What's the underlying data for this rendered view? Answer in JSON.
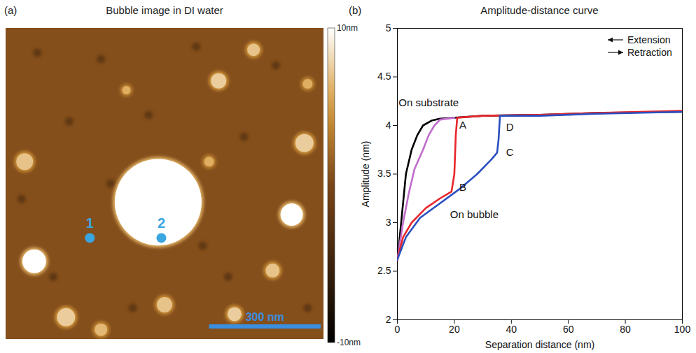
{
  "chart_data": [
    {
      "type": "image",
      "panel_label": "(a)",
      "title": "Bubble image in DI water",
      "colorbar": {
        "range": [
          -10,
          10
        ],
        "ticks": [
          {
            "value": 10,
            "label": "10nm"
          },
          {
            "value": -10,
            "label": "-10nm"
          }
        ]
      },
      "markers": [
        {
          "label": "1",
          "color": "#3aa6e0"
        },
        {
          "label": "2",
          "color": "#3aa6e0"
        }
      ],
      "scale_bar": {
        "label": "300 nm",
        "color": "#3a8fe0"
      }
    },
    {
      "type": "line",
      "panel_label": "(b)",
      "title": "Amplitude-distance curve",
      "x_label": "Separation distance (nm)",
      "y_label": "Amplitude (nm)",
      "xlim": [
        0,
        100
      ],
      "xticks": [
        0,
        20,
        40,
        60,
        80,
        100
      ],
      "ylim": [
        2,
        5
      ],
      "yticks": [
        2,
        2.5,
        3,
        3.5,
        4,
        4.5,
        5
      ],
      "legend": "top-right",
      "legend_entries": [
        "Extension",
        "Retraction"
      ],
      "series": [
        {
          "color": "#000000",
          "x": [
            0,
            1,
            2,
            3,
            5,
            7,
            9,
            12,
            15,
            30,
            50,
            70,
            100
          ],
          "values": [
            2.62,
            2.9,
            3.2,
            3.5,
            3.75,
            3.9,
            4.0,
            4.05,
            4.07,
            4.1,
            4.11,
            4.13,
            4.14
          ]
        },
        {
          "color": "#c06ccc",
          "x": [
            0,
            2,
            4,
            6,
            9,
            11,
            13,
            15,
            20
          ],
          "values": [
            2.62,
            3.0,
            3.3,
            3.55,
            3.75,
            3.9,
            4.0,
            4.06,
            4.08
          ]
        },
        {
          "color": "#e8262b",
          "x": [
            0,
            2,
            5,
            10,
            15,
            19,
            20,
            20.5,
            21,
            30,
            50,
            70,
            100
          ],
          "values": [
            2.62,
            2.85,
            3.0,
            3.15,
            3.25,
            3.32,
            3.5,
            3.9,
            4.08,
            4.1,
            4.11,
            4.13,
            4.15
          ]
        },
        {
          "color": "#2a4fbf",
          "x": [
            0,
            3,
            8,
            15,
            22,
            28,
            33,
            35,
            35.5,
            36,
            50,
            70,
            100
          ],
          "values": [
            2.62,
            2.85,
            3.05,
            3.2,
            3.35,
            3.5,
            3.65,
            3.72,
            3.85,
            4.1,
            4.1,
            4.12,
            4.14
          ]
        }
      ],
      "annotations": [
        {
          "text": "On substrate",
          "x": 11,
          "y": 4.23
        },
        {
          "text": "On bubble",
          "x": 27,
          "y": 3.08
        },
        {
          "text": "A",
          "x": 23,
          "y": 4.0
        },
        {
          "text": "B",
          "x": 23,
          "y": 3.36
        },
        {
          "text": "C",
          "x": 39.5,
          "y": 3.72
        },
        {
          "text": "D",
          "x": 39.5,
          "y": 3.98
        }
      ]
    }
  ]
}
